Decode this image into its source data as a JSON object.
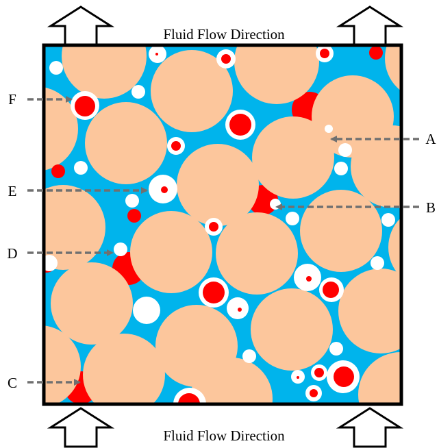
{
  "title_top": "Fluid Flow Direction",
  "title_bottom": "Fluid Flow Direction",
  "labels": {
    "A": "A",
    "B": "B",
    "C": "C",
    "D": "D",
    "E": "E",
    "F": "F"
  },
  "colors": {
    "fluid": "#00b4ec",
    "grain": "#fcc69c",
    "bubble": "#ffffff",
    "droplet": "#ff0000",
    "frame": "#000000",
    "pointer": "#707070"
  }
}
